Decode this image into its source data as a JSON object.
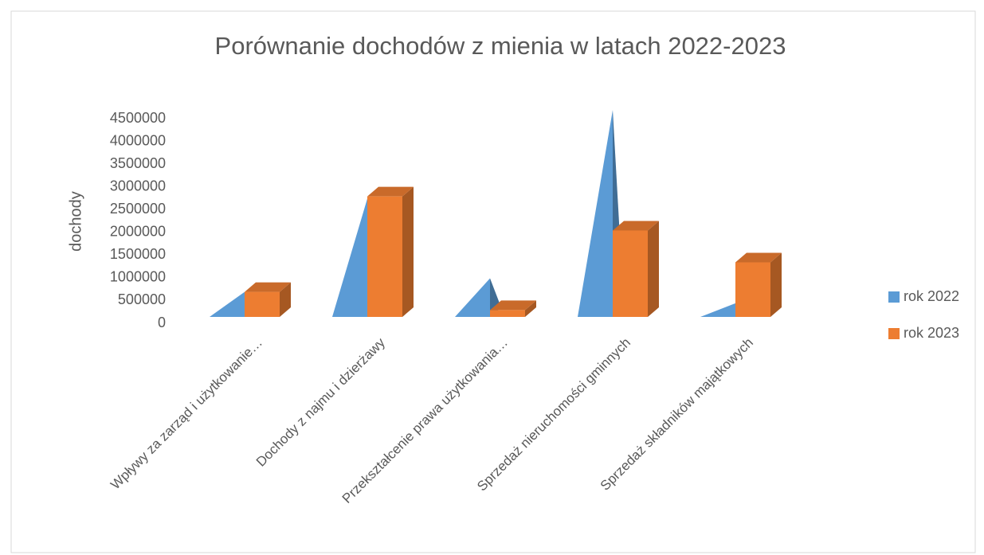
{
  "chart_data": {
    "type": "bar3d",
    "title": "Porównanie dochodów z mienia w latach 2022-2023",
    "y_label": "dochody",
    "categories": [
      "Wpływy za zarząd i użytkowanie…",
      "Dochody z najmu i dzierżawy",
      "Przekształcenie prawa użytkowania…",
      "Sprzedaż nieruchomości gminnych",
      "Sprzedaż składników majątkowych"
    ],
    "series": [
      {
        "name": "rok 2022",
        "color": "#5b9bd5",
        "shape": "pyramid",
        "values": [
          550000,
          2600000,
          850000,
          4550000,
          300000
        ]
      },
      {
        "name": "rok 2023",
        "color": "#ed7d31",
        "shape": "column",
        "values": [
          550000,
          2650000,
          150000,
          1900000,
          1200000
        ]
      }
    ],
    "ylim": [
      0,
      4500000
    ],
    "yticks": [
      0,
      500000,
      1000000,
      1500000,
      2000000,
      2500000,
      3000000,
      3500000,
      4000000,
      4500000
    ],
    "grid": false,
    "legend": "right"
  }
}
